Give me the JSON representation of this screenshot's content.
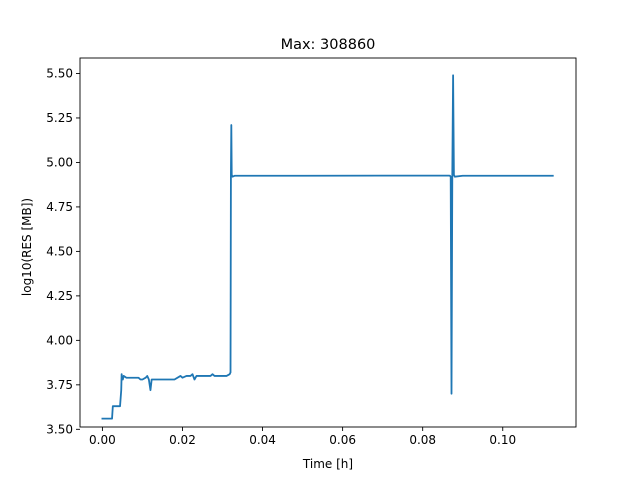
{
  "chart_data": {
    "type": "line",
    "title": "Max: 308860",
    "xlabel": "Time [h]",
    "ylabel": "log10(RES [MB])",
    "xlim": [
      -0.0056,
      0.1183
    ],
    "ylim": [
      3.513,
      5.587
    ],
    "x_ticks": [
      0.0,
      0.02,
      0.04,
      0.06,
      0.08,
      0.1
    ],
    "x_tick_labels": [
      "0.00",
      "0.02",
      "0.04",
      "0.06",
      "0.08",
      "0.10"
    ],
    "y_ticks": [
      3.5,
      3.75,
      4.0,
      4.25,
      4.5,
      4.75,
      5.0,
      5.25,
      5.5
    ],
    "y_tick_labels": [
      "3.50",
      "3.75",
      "4.00",
      "4.25",
      "4.50",
      "4.75",
      "5.00",
      "5.25",
      "5.50"
    ],
    "grid": false,
    "line_color": "#1f77b4",
    "series": [
      {
        "x": [
          0.0,
          0.0024,
          0.0026,
          0.0044,
          0.0047,
          0.0048,
          0.0049,
          0.0051,
          0.0053,
          0.006,
          0.009,
          0.0095,
          0.01,
          0.0108,
          0.0112,
          0.0116,
          0.012,
          0.0123,
          0.0126,
          0.013,
          0.018,
          0.0195,
          0.02,
          0.021,
          0.022,
          0.0225,
          0.023,
          0.0235,
          0.024,
          0.027,
          0.0275,
          0.028,
          0.031,
          0.0318,
          0.032,
          0.0321,
          0.0322,
          0.0323,
          0.0325,
          0.033,
          0.05,
          0.07,
          0.0866,
          0.0868,
          0.087,
          0.0872,
          0.0874,
          0.0876,
          0.0878,
          0.088,
          0.09,
          0.1,
          0.1125
        ],
        "y": [
          3.56,
          3.56,
          3.63,
          3.63,
          3.72,
          3.81,
          3.79,
          3.78,
          3.8,
          3.79,
          3.79,
          3.78,
          3.78,
          3.79,
          3.8,
          3.78,
          3.72,
          3.78,
          3.78,
          3.78,
          3.78,
          3.8,
          3.79,
          3.8,
          3.8,
          3.81,
          3.78,
          3.8,
          3.8,
          3.8,
          3.81,
          3.8,
          3.8,
          3.81,
          3.82,
          4.93,
          5.21,
          4.93,
          4.92,
          4.925,
          4.925,
          4.926,
          4.926,
          4.925,
          4.92,
          3.7,
          4.93,
          5.49,
          4.93,
          4.92,
          4.925,
          4.925,
          4.925
        ]
      }
    ]
  }
}
